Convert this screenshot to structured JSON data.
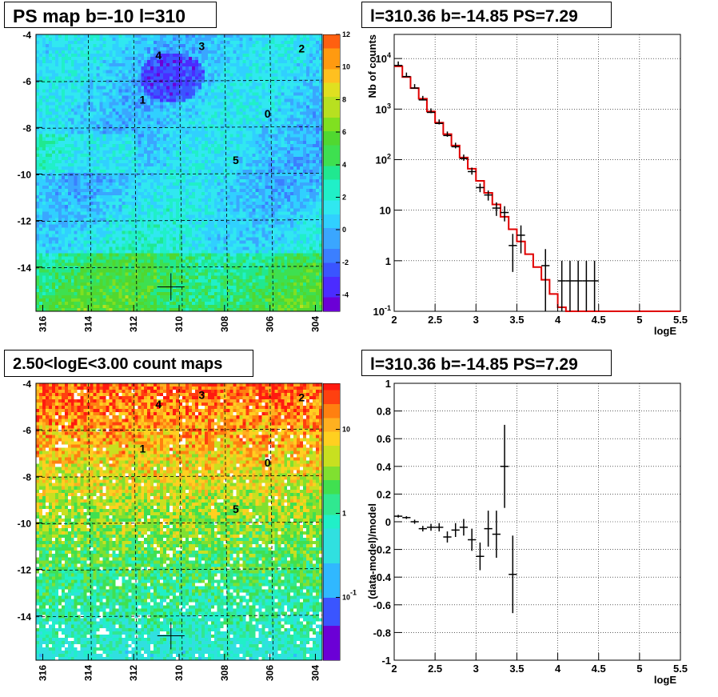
{
  "titles": {
    "map_top": "PS map b=-10 l=310",
    "spec_top": "l=310.36 b=-14.85 PS=7.29",
    "map_bottom": "2.50<logE<3.00 count maps",
    "resid_bottom": "l=310.36 b=-14.85 PS=7.29"
  },
  "chart_data": [
    {
      "type": "heatmap",
      "title": "PS map b=-10 l=310",
      "xlim": [
        316.3,
        303.7
      ],
      "ylim": [
        -15.9,
        -4.0
      ],
      "xticks": [
        "316",
        "314",
        "312",
        "310",
        "308",
        "306",
        "304"
      ],
      "yticks": [
        "-4",
        "-6",
        "-8",
        "-10",
        "-12",
        "-14"
      ],
      "colorbar": {
        "min": -5,
        "max": 12,
        "ticks": [
          "12",
          "10",
          "8",
          "6",
          "4",
          "2",
          "0",
          "-2",
          "-4"
        ]
      },
      "grid": true,
      "labels": [
        {
          "text": "2",
          "l": 304.6,
          "b": -4.6
        },
        {
          "text": "3",
          "l": 309.0,
          "b": -4.5
        },
        {
          "text": "4",
          "l": 310.9,
          "b": -4.9
        },
        {
          "text": "1",
          "l": 311.6,
          "b": -6.8
        },
        {
          "text": "0",
          "l": 306.1,
          "b": -7.4
        },
        {
          "text": "5",
          "l": 307.5,
          "b": -9.4
        }
      ],
      "marker": {
        "l": 310.36,
        "b": -14.85
      }
    },
    {
      "type": "line",
      "title": "l=310.36 b=-14.85 PS=7.29",
      "xlabel": "logE",
      "ylabel": "Nb of counts",
      "xlim": [
        2,
        5.5
      ],
      "ylim": [
        0.1,
        30000
      ],
      "yscale": "log",
      "xticks": [
        "2",
        "2.5",
        "3",
        "3.5",
        "4",
        "4.5",
        "5",
        "5.5"
      ],
      "yticks": [
        "10^4",
        "10^3",
        "10^2",
        "10",
        "1",
        "10^-1"
      ],
      "grid": true,
      "model": {
        "bin_width": 0.1,
        "x": [
          2.0,
          2.1,
          2.2,
          2.3,
          2.4,
          2.5,
          2.6,
          2.7,
          2.8,
          2.9,
          3.0,
          3.1,
          3.2,
          3.3,
          3.4,
          3.5,
          3.6,
          3.7,
          3.8,
          3.9,
          4.0,
          4.1,
          4.2,
          4.3,
          4.4,
          4.5,
          4.6,
          4.7,
          4.8,
          4.9,
          5.0,
          5.1,
          5.2,
          5.3,
          5.4
        ],
        "values": [
          7000,
          4300,
          2600,
          1600,
          900,
          540,
          320,
          190,
          110,
          66,
          38,
          22,
          13,
          7.4,
          4.2,
          2.4,
          1.35,
          0.75,
          0.42,
          0.22,
          0.12,
          0.1,
          0.1,
          0.1,
          0.1,
          0.1,
          0.1,
          0.1,
          0.1,
          0.1,
          0.1,
          0.1,
          0.1,
          0.1,
          0.1
        ]
      },
      "data": {
        "x": [
          2.05,
          2.15,
          2.25,
          2.35,
          2.45,
          2.55,
          2.65,
          2.75,
          2.85,
          2.95,
          3.05,
          3.15,
          3.25,
          3.35,
          3.45,
          3.55,
          3.85,
          4.05,
          4.15,
          4.25,
          4.35,
          4.45
        ],
        "y": [
          7300,
          4400,
          2600,
          1520,
          860,
          520,
          300,
          180,
          105,
          58,
          28,
          20,
          11,
          9,
          2,
          3.2,
          0.8,
          0.4,
          0.4,
          0.4,
          0.4,
          0.4
        ],
        "yerr": [
          85,
          66,
          51,
          39,
          29,
          23,
          17,
          13,
          10,
          7.6,
          5.3,
          4.5,
          3.3,
          3,
          1.4,
          1.8,
          0.9,
          0.6,
          0.6,
          0.6,
          0.6,
          0.6
        ]
      }
    },
    {
      "type": "heatmap",
      "title": "2.50<logE<3.00 count maps",
      "xlim": [
        316.3,
        303.7
      ],
      "ylim": [
        -15.9,
        -4.0
      ],
      "xticks": [
        "316",
        "314",
        "312",
        "310",
        "308",
        "306",
        "304"
      ],
      "yticks": [
        "-4",
        "-6",
        "-8",
        "-10",
        "-12",
        "-14"
      ],
      "colorbar": {
        "scale": "log",
        "ticks": [
          "10",
          "1",
          "10^-1"
        ]
      },
      "grid": true,
      "labels": [
        {
          "text": "2",
          "l": 304.6,
          "b": -4.6
        },
        {
          "text": "3",
          "l": 309.0,
          "b": -4.5
        },
        {
          "text": "4",
          "l": 310.9,
          "b": -4.9
        },
        {
          "text": "1",
          "l": 311.6,
          "b": -6.8
        },
        {
          "text": "0",
          "l": 306.1,
          "b": -7.4
        },
        {
          "text": "5",
          "l": 307.5,
          "b": -9.4
        }
      ],
      "marker": {
        "l": 310.36,
        "b": -14.85
      }
    },
    {
      "type": "scatter",
      "title": "l=310.36 b=-14.85 PS=7.29",
      "xlabel": "logE",
      "ylabel": "(data-model)/model",
      "xlim": [
        2,
        5.5
      ],
      "ylim": [
        -1,
        1
      ],
      "xticks": [
        "2",
        "2.5",
        "3",
        "3.5",
        "4",
        "4.5",
        "5",
        "5.5"
      ],
      "yticks": [
        "1",
        "0.8",
        "0.6",
        "0.4",
        "0.2",
        "0",
        "-0.2",
        "-0.4",
        "-0.6",
        "-0.8",
        "-1"
      ],
      "grid": true,
      "x": [
        2.05,
        2.15,
        2.25,
        2.35,
        2.45,
        2.55,
        2.65,
        2.75,
        2.85,
        2.95,
        3.05,
        3.15,
        3.25,
        3.35,
        3.45
      ],
      "y": [
        0.04,
        0.03,
        0.0,
        -0.05,
        -0.04,
        -0.04,
        -0.11,
        -0.06,
        -0.04,
        -0.13,
        -0.25,
        -0.05,
        -0.09,
        0.4,
        -0.38
      ],
      "yerr": [
        0.01,
        0.01,
        0.015,
        0.02,
        0.025,
        0.03,
        0.04,
        0.05,
        0.06,
        0.08,
        0.1,
        0.13,
        0.17,
        0.3,
        0.28
      ]
    }
  ]
}
